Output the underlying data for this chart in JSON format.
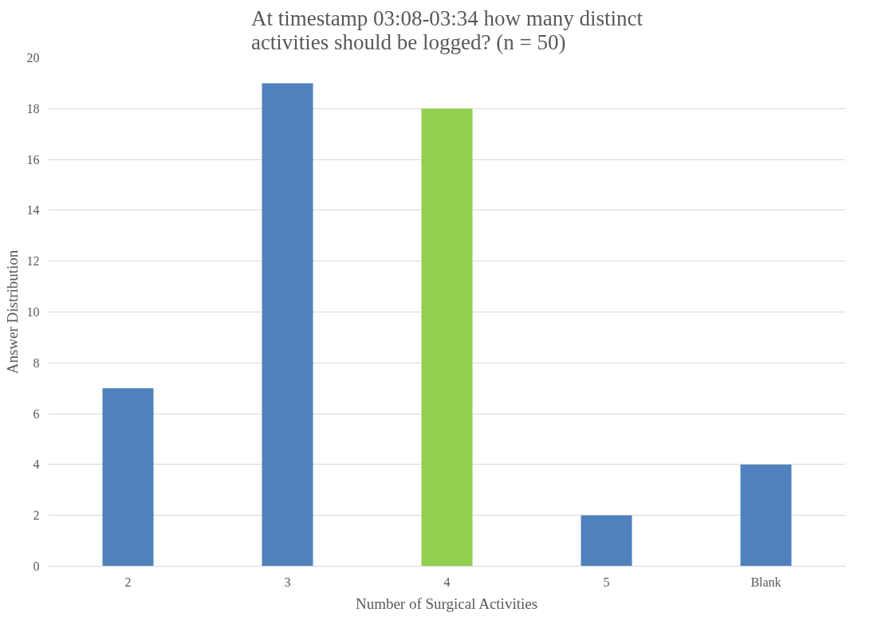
{
  "chart_data": {
    "type": "bar",
    "title": "At timestamp 03:08-03:34 how many distinct activities should be logged? (n = 50)",
    "xlabel": "Number of Surgical Activities",
    "ylabel": "Answer Distribution",
    "categories": [
      "2",
      "3",
      "4",
      "5",
      "Blank"
    ],
    "values": [
      7,
      19,
      18,
      2,
      4
    ],
    "colors": [
      "#4f81bd",
      "#4f81bd",
      "#92d050",
      "#4f81bd",
      "#4f81bd"
    ],
    "ylim": [
      0,
      20
    ],
    "yticks": [
      0,
      2,
      4,
      6,
      8,
      10,
      12,
      14,
      16,
      18,
      20
    ],
    "grid": "y"
  }
}
